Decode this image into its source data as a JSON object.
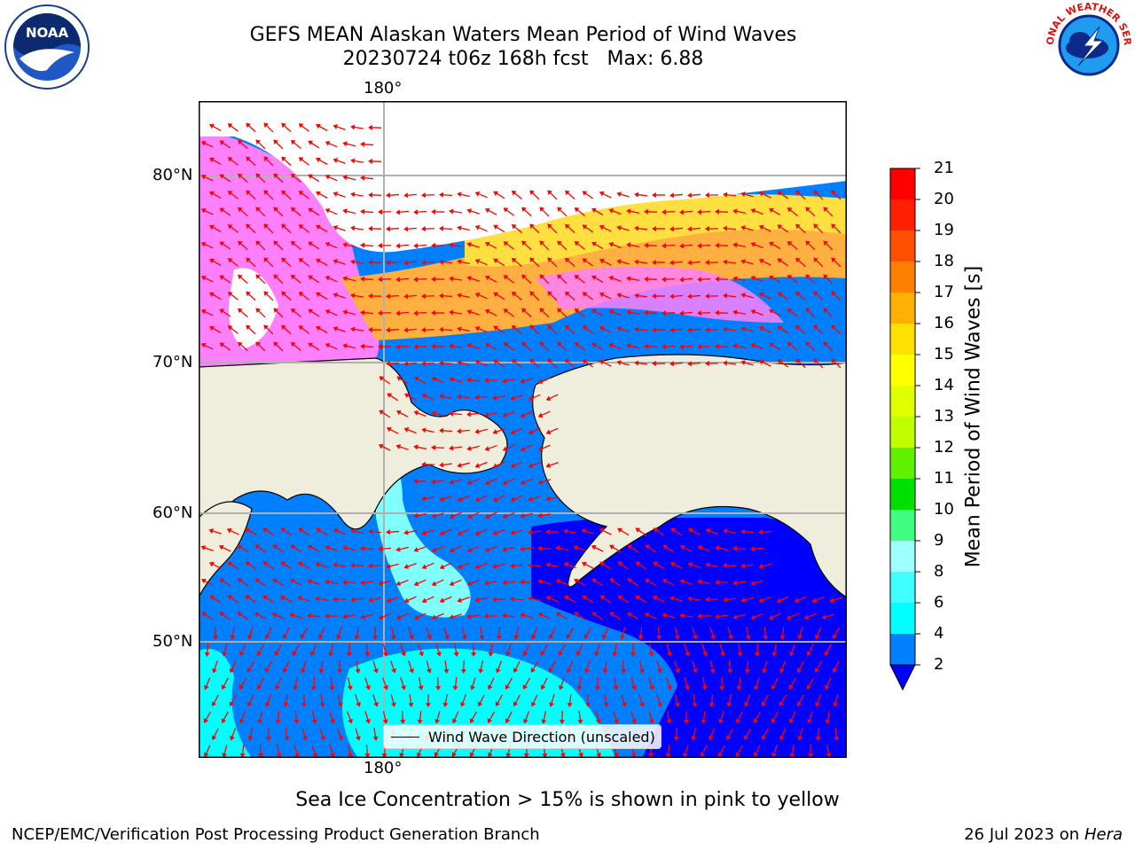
{
  "title": {
    "line1": "GEFS MEAN Alaskan Waters Mean Period of Wind Waves",
    "line2": "20230724 t06z 168h fcst   Max: 6.88"
  },
  "logos": {
    "left": {
      "name": "noaa-logo",
      "text": "NOAA"
    },
    "right": {
      "name": "national-weather-service-logo",
      "text": "NATIONAL WEATHER SERVICE"
    }
  },
  "map": {
    "lon_label_top": "180°",
    "lon_label_bottom": "180°",
    "lat_labels": [
      "80°N",
      "70°N",
      "60°N",
      "50°N"
    ],
    "colors": {
      "land": "#efeedc",
      "ocean_dark": "#0000ff",
      "ocean_mid": "#0080ff",
      "ocean_light": "#00ffff",
      "ocean_pale": "#80ffff",
      "ice_pink": "#ff80ff",
      "ice_orange": "#ffb040",
      "ice_yellow": "#ffe040",
      "arrow": "#ff0000",
      "grid": "#b0b0b0"
    }
  },
  "legend": {
    "label": "Wind Wave Direction (unscaled)"
  },
  "colorbar": {
    "label": "Mean Period of Wind Waves [s]",
    "ticks": [
      "2",
      "4",
      "6",
      "8",
      "9",
      "10",
      "11",
      "12",
      "13",
      "14",
      "15",
      "16",
      "17",
      "18",
      "19",
      "20",
      "21"
    ],
    "colors": [
      "#0000ff",
      "#0080ff",
      "#00ffff",
      "#40ffff",
      "#a0ffff",
      "#40ff80",
      "#00e000",
      "#60f000",
      "#c0ff00",
      "#e0ff00",
      "#ffff00",
      "#ffe000",
      "#ffb000",
      "#ff8000",
      "#ff5000",
      "#ff2000",
      "#ff0000"
    ]
  },
  "caption": "Sea Ice Concentration > 15% is shown in pink to yellow",
  "footer": {
    "left": "NCEP/EMC/Verification Post Processing Product Generation Branch",
    "right_prefix": "26 Jul 2023 on ",
    "right_host": "Hera"
  }
}
